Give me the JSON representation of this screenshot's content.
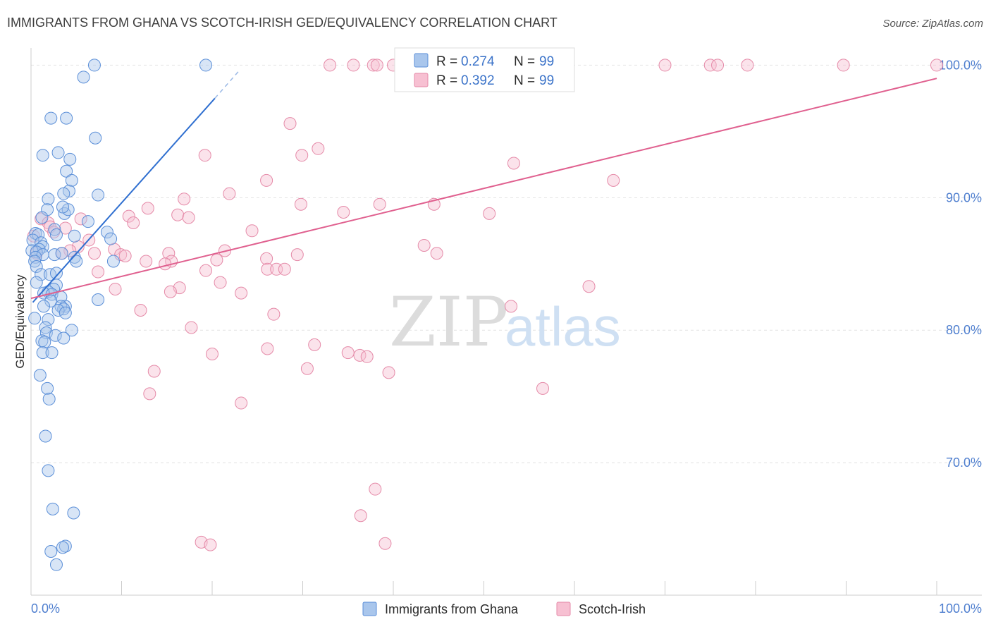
{
  "chart_data": {
    "type": "scatter",
    "title": "IMMIGRANTS FROM GHANA VS SCOTCH-IRISH GED/EQUIVALENCY CORRELATION CHART",
    "source": "Source: ZipAtlas.com",
    "ylabel": "GED/Equivalency",
    "xlabel": "",
    "xlim": [
      0,
      100
    ],
    "ylim": [
      60,
      101.3
    ],
    "x_tick_labels": [
      "0.0%",
      "100.0%"
    ],
    "y_ticks": [
      70,
      80,
      90,
      100
    ],
    "y_tick_labels": [
      "70.0%",
      "80.0%",
      "90.0%",
      "100.0%"
    ],
    "grid": true,
    "legend_position": "bottom-center",
    "watermark": {
      "part1": "ZIP",
      "part2": "atlas"
    },
    "stats_box": [
      {
        "series": "Immigrants from Ghana",
        "r_label": "R =",
        "r_value": "0.274",
        "n_label": "N =",
        "n_value": "99"
      },
      {
        "series": "Scotch-Irish",
        "r_label": "R =",
        "r_value": "0.392",
        "n_label": "N =",
        "n_value": "99"
      }
    ],
    "series": [
      {
        "name": "Immigrants from Ghana",
        "fill_color": "#a9c6ec",
        "stroke_color": "#5b8fd8",
        "line_color": "#2f6fd0",
        "trend": {
          "x0": 0.2,
          "y0": 82.1,
          "x1": 20.3,
          "y1": 97.5,
          "dash_x1": 23.0,
          "dash_y1": 99.6
        },
        "points": [
          [
            7.0,
            100.0
          ],
          [
            19.3,
            100.0
          ],
          [
            5.8,
            99.1
          ],
          [
            2.2,
            96.0
          ],
          [
            3.9,
            96.0
          ],
          [
            7.1,
            94.5
          ],
          [
            3.0,
            93.4
          ],
          [
            1.3,
            93.2
          ],
          [
            4.3,
            92.9
          ],
          [
            3.9,
            92.0
          ],
          [
            4.5,
            91.3
          ],
          [
            4.2,
            90.5
          ],
          [
            3.6,
            90.3
          ],
          [
            1.9,
            89.9
          ],
          [
            7.4,
            90.2
          ],
          [
            1.8,
            89.1
          ],
          [
            3.7,
            88.8
          ],
          [
            4.1,
            89.1
          ],
          [
            3.5,
            89.3
          ],
          [
            1.2,
            88.5
          ],
          [
            6.3,
            88.2
          ],
          [
            2.6,
            87.6
          ],
          [
            0.5,
            87.3
          ],
          [
            0.8,
            87.2
          ],
          [
            2.8,
            87.2
          ],
          [
            4.8,
            87.1
          ],
          [
            8.4,
            87.4
          ],
          [
            8.8,
            86.9
          ],
          [
            0.2,
            86.8
          ],
          [
            1.1,
            86.6
          ],
          [
            1.3,
            86.3
          ],
          [
            0.9,
            86.1
          ],
          [
            0.1,
            86.0
          ],
          [
            0.6,
            85.9
          ],
          [
            1.3,
            85.7
          ],
          [
            2.6,
            85.7
          ],
          [
            3.4,
            85.8
          ],
          [
            4.8,
            85.5
          ],
          [
            0.5,
            85.5
          ],
          [
            0.4,
            85.2
          ],
          [
            9.1,
            85.2
          ],
          [
            5.0,
            85.2
          ],
          [
            0.6,
            84.8
          ],
          [
            1.1,
            84.2
          ],
          [
            2.1,
            84.2
          ],
          [
            2.8,
            84.3
          ],
          [
            0.6,
            83.6
          ],
          [
            2.8,
            83.4
          ],
          [
            2.5,
            83.1
          ],
          [
            1.9,
            82.9
          ],
          [
            1.4,
            82.8
          ],
          [
            2.3,
            82.7
          ],
          [
            3.3,
            82.5
          ],
          [
            2.2,
            82.2
          ],
          [
            7.4,
            82.3
          ],
          [
            3.8,
            81.8
          ],
          [
            1.4,
            81.8
          ],
          [
            3.3,
            81.8
          ],
          [
            3.6,
            81.6
          ],
          [
            3.0,
            81.5
          ],
          [
            3.8,
            81.3
          ],
          [
            0.4,
            80.9
          ],
          [
            1.9,
            80.8
          ],
          [
            1.6,
            80.2
          ],
          [
            4.5,
            80.0
          ],
          [
            1.7,
            79.8
          ],
          [
            2.7,
            79.6
          ],
          [
            3.6,
            79.4
          ],
          [
            1.2,
            79.2
          ],
          [
            1.5,
            79.1
          ],
          [
            1.3,
            78.3
          ],
          [
            2.3,
            78.3
          ],
          [
            1.0,
            76.6
          ],
          [
            1.8,
            75.6
          ],
          [
            2.0,
            74.8
          ],
          [
            1.6,
            72.0
          ],
          [
            1.9,
            69.4
          ],
          [
            2.4,
            66.5
          ],
          [
            4.7,
            66.2
          ],
          [
            3.8,
            63.7
          ],
          [
            3.5,
            63.6
          ],
          [
            2.2,
            63.3
          ],
          [
            2.8,
            62.3
          ]
        ]
      },
      {
        "name": "Scotch-Irish",
        "fill_color": "#f7c0d2",
        "stroke_color": "#e58aa8",
        "line_color": "#e0608f",
        "trend": {
          "x0": 0.0,
          "y0": 82.4,
          "x1": 100.0,
          "y1": 99.0
        },
        "points": [
          [
            33.0,
            100.0
          ],
          [
            35.6,
            100.0
          ],
          [
            37.8,
            100.0
          ],
          [
            38.2,
            100.0
          ],
          [
            40.0,
            100.0
          ],
          [
            42.0,
            100.0
          ],
          [
            42.2,
            100.0
          ],
          [
            43.6,
            100.0
          ],
          [
            47.4,
            100.0
          ],
          [
            52.9,
            100.0
          ],
          [
            55.6,
            100.0
          ],
          [
            70.0,
            100.0
          ],
          [
            75.0,
            100.0
          ],
          [
            75.8,
            100.0
          ],
          [
            79.1,
            100.0
          ],
          [
            89.7,
            100.0
          ],
          [
            100.0,
            100.0
          ],
          [
            28.6,
            95.6
          ],
          [
            31.7,
            93.7
          ],
          [
            19.2,
            93.2
          ],
          [
            29.9,
            93.2
          ],
          [
            53.3,
            92.6
          ],
          [
            26.0,
            91.3
          ],
          [
            64.3,
            91.3
          ],
          [
            21.9,
            90.3
          ],
          [
            16.9,
            89.9
          ],
          [
            29.8,
            89.5
          ],
          [
            38.5,
            89.5
          ],
          [
            44.5,
            89.5
          ],
          [
            12.9,
            89.2
          ],
          [
            34.5,
            88.9
          ],
          [
            50.6,
            88.8
          ],
          [
            16.2,
            88.7
          ],
          [
            10.8,
            88.6
          ],
          [
            17.4,
            88.5
          ],
          [
            1.1,
            88.4
          ],
          [
            5.5,
            88.4
          ],
          [
            1.9,
            88.1
          ],
          [
            11.3,
            88.1
          ],
          [
            2.1,
            87.8
          ],
          [
            3.8,
            87.7
          ],
          [
            2.5,
            87.4
          ],
          [
            24.4,
            87.5
          ],
          [
            0.3,
            87.1
          ],
          [
            6.4,
            86.8
          ],
          [
            43.4,
            86.4
          ],
          [
            5.2,
            86.3
          ],
          [
            9.2,
            86.1
          ],
          [
            21.4,
            86.0
          ],
          [
            4.3,
            86.0
          ],
          [
            0.6,
            85.8
          ],
          [
            3.4,
            85.8
          ],
          [
            7.0,
            85.8
          ],
          [
            15.2,
            85.8
          ],
          [
            44.8,
            85.8
          ],
          [
            29.4,
            85.7
          ],
          [
            9.9,
            85.7
          ],
          [
            10.4,
            85.6
          ],
          [
            26.0,
            85.4
          ],
          [
            12.7,
            85.2
          ],
          [
            15.5,
            85.2
          ],
          [
            20.5,
            85.3
          ],
          [
            14.8,
            85.0
          ],
          [
            19.3,
            84.5
          ],
          [
            26.1,
            84.6
          ],
          [
            27.1,
            84.6
          ],
          [
            28.0,
            84.6
          ],
          [
            7.4,
            84.4
          ],
          [
            20.9,
            83.6
          ],
          [
            16.4,
            83.2
          ],
          [
            61.6,
            83.3
          ],
          [
            9.3,
            83.1
          ],
          [
            15.4,
            82.9
          ],
          [
            23.2,
            82.8
          ],
          [
            53.0,
            81.8
          ],
          [
            12.1,
            81.5
          ],
          [
            26.8,
            81.2
          ],
          [
            17.7,
            80.2
          ],
          [
            31.3,
            78.9
          ],
          [
            26.1,
            78.6
          ],
          [
            35.0,
            78.3
          ],
          [
            20.0,
            78.2
          ],
          [
            36.3,
            78.1
          ],
          [
            37.1,
            78.0
          ],
          [
            30.5,
            77.1
          ],
          [
            13.6,
            76.9
          ],
          [
            39.5,
            76.8
          ],
          [
            56.5,
            75.6
          ],
          [
            13.1,
            75.2
          ],
          [
            23.2,
            74.5
          ],
          [
            38.0,
            68.0
          ],
          [
            36.4,
            66.0
          ],
          [
            18.8,
            64.0
          ],
          [
            19.8,
            63.8
          ],
          [
            39.1,
            63.9
          ]
        ]
      }
    ]
  }
}
